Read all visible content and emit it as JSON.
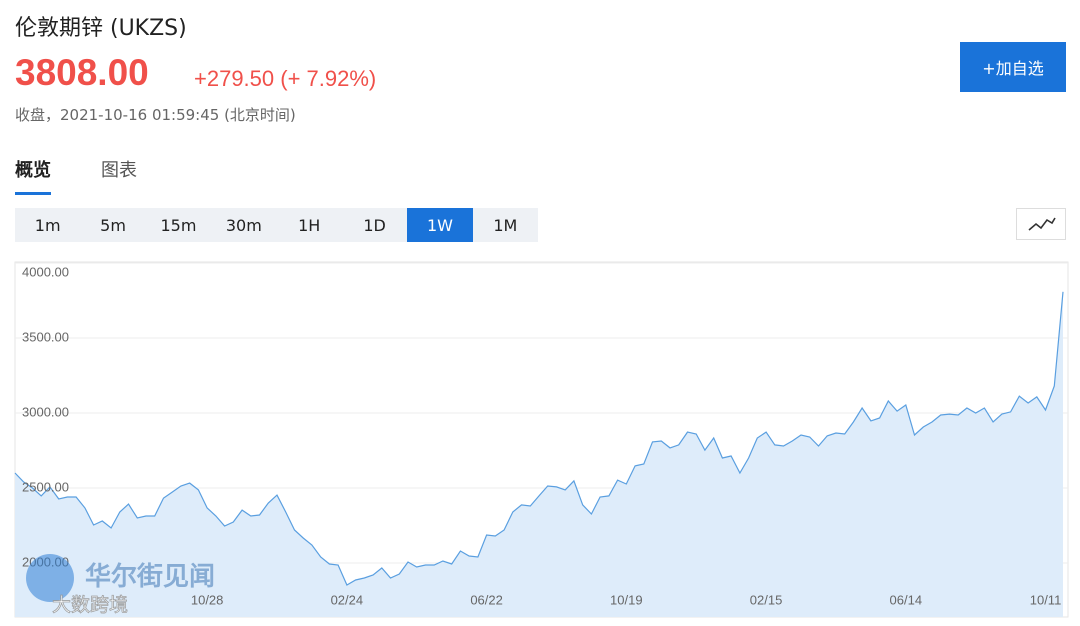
{
  "header": {
    "title": "伦敦期锌 (UKZS)",
    "price": "3808.00",
    "change": "+279.50 (+ 7.92%)",
    "status": "收盘，2021-10-16 01:59:45 (北京时间)"
  },
  "add_button": "+加自选",
  "tabs": [
    "概览",
    "图表"
  ],
  "active_tab": 0,
  "intervals": [
    "1m",
    "5m",
    "15m",
    "30m",
    "1H",
    "1D",
    "1W",
    "1M"
  ],
  "active_interval": 6,
  "watermarks": [
    "华尔街见闻",
    "大数跨境"
  ],
  "chart_data": {
    "type": "area",
    "color": "#5a9fe0",
    "fill": "#deecfa",
    "grid": true,
    "ylim": [
      1640,
      4000
    ],
    "yticks": [
      {
        "value": 2000,
        "label": "2000.00"
      },
      {
        "value": 2500,
        "label": "2500.00"
      },
      {
        "value": 3000,
        "label": "3000.00"
      },
      {
        "value": 3500,
        "label": "3500.00"
      },
      {
        "value": 4000,
        "label": "4000.00"
      }
    ],
    "categories": [
      null,
      null,
      null,
      null,
      null,
      null,
      null,
      null,
      null,
      null,
      null,
      null,
      null,
      null,
      null,
      null,
      null,
      null,
      null,
      null,
      null,
      null,
      "10/28",
      null,
      null,
      null,
      null,
      null,
      null,
      null,
      null,
      null,
      null,
      null,
      null,
      null,
      null,
      null,
      "02/24",
      null,
      null,
      null,
      null,
      null,
      null,
      null,
      null,
      null,
      null,
      null,
      null,
      null,
      null,
      null,
      "06/22",
      null,
      null,
      null,
      null,
      null,
      null,
      null,
      null,
      null,
      null,
      null,
      null,
      null,
      null,
      null,
      "10/19",
      null,
      null,
      null,
      null,
      null,
      null,
      null,
      null,
      null,
      null,
      null,
      null,
      null,
      null,
      null,
      "02/15",
      null,
      null,
      null,
      null,
      null,
      null,
      null,
      null,
      null,
      null,
      null,
      null,
      null,
      null,
      null,
      "06/14",
      null,
      null,
      null,
      null,
      null,
      null,
      null,
      null,
      null,
      null,
      null,
      null,
      null,
      null,
      null,
      "10/11",
      null,
      null
    ],
    "values": [
      2600,
      2540,
      2500,
      2447,
      2507,
      2427,
      2440,
      2440,
      2367,
      2253,
      2280,
      2233,
      2340,
      2393,
      2300,
      2313,
      2313,
      2433,
      2473,
      2513,
      2533,
      2487,
      2367,
      2313,
      2247,
      2273,
      2353,
      2313,
      2320,
      2400,
      2453,
      2340,
      2220,
      2167,
      2120,
      2040,
      1993,
      1987,
      1853,
      1887,
      1900,
      1920,
      1967,
      1900,
      1927,
      2007,
      1973,
      1987,
      1987,
      2013,
      1993,
      2080,
      2047,
      2040,
      2187,
      2180,
      2220,
      2340,
      2387,
      2380,
      2447,
      2513,
      2507,
      2487,
      2547,
      2387,
      2327,
      2440,
      2447,
      2553,
      2527,
      2647,
      2660,
      2807,
      2813,
      2767,
      2787,
      2873,
      2860,
      2753,
      2833,
      2700,
      2713,
      2600,
      2700,
      2833,
      2873,
      2787,
      2780,
      2813,
      2853,
      2840,
      2780,
      2847,
      2867,
      2860,
      2940,
      3033,
      2947,
      2967,
      3080,
      3013,
      3053,
      2853,
      2907,
      2940,
      2987,
      2993,
      2987,
      3033,
      3000,
      3033,
      2940,
      2993,
      3007,
      3113,
      3067,
      3107,
      3020,
      3180,
      3808
    ]
  }
}
